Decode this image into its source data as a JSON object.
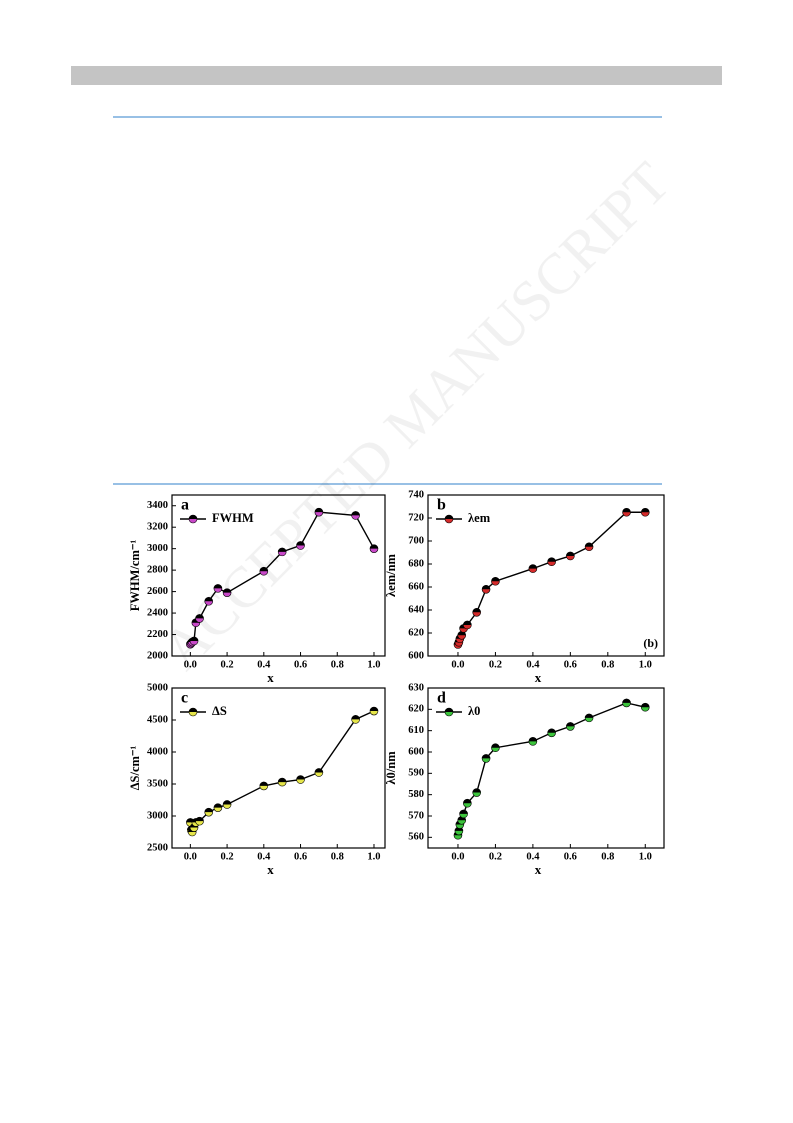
{
  "watermark": "ACCEPTED MANUSCRIPT",
  "chart_data": [
    {
      "type": "line",
      "panel_label": "a",
      "x_label": "x",
      "y_label": "FWHM/cm⁻¹",
      "x": [
        0,
        0.005,
        0.01,
        0.02,
        0.03,
        0.05,
        0.1,
        0.15,
        0.2,
        0.4,
        0.5,
        0.6,
        0.7,
        0.9,
        1.0
      ],
      "series": [
        {
          "name": "FWHM",
          "color": "#c848c8",
          "values": [
            2110,
            2120,
            2130,
            2140,
            2310,
            2350,
            2510,
            2630,
            2590,
            2790,
            2970,
            3030,
            3340,
            3310,
            3000
          ]
        }
      ],
      "xlim": [
        -0.1,
        1.06
      ],
      "ylim": [
        2000,
        3500
      ],
      "xticks": [
        {
          "value": 0,
          "label": "0.0"
        },
        0.2,
        0.4,
        0.6,
        0.8,
        {
          "value": 1,
          "label": "1.0"
        }
      ],
      "yticks": [
        2000,
        2200,
        2400,
        2600,
        2800,
        3000,
        3200,
        3400
      ]
    },
    {
      "type": "line",
      "panel_label": "b",
      "x_label": "x",
      "y_label": "λem/nm",
      "annotation": "(b)",
      "x": [
        0,
        0.005,
        0.01,
        0.02,
        0.03,
        0.05,
        0.1,
        0.15,
        0.2,
        0.4,
        0.5,
        0.6,
        0.7,
        0.9,
        1.0
      ],
      "series": [
        {
          "name": "λem",
          "color": "#d42a2a",
          "values": [
            610,
            612,
            615,
            618,
            624,
            627,
            638,
            658,
            665,
            676,
            682,
            687,
            695,
            725,
            725
          ]
        }
      ],
      "xlim": [
        -0.16,
        1.1
      ],
      "ylim": [
        600,
        740
      ],
      "xticks": [
        {
          "value": 0,
          "label": "0.0"
        },
        0.2,
        0.4,
        0.6,
        0.8,
        {
          "value": 1,
          "label": "1.0"
        }
      ],
      "yticks": [
        600,
        620,
        640,
        660,
        680,
        700,
        720,
        740
      ]
    },
    {
      "type": "line",
      "panel_label": "c",
      "x_label": "x",
      "y_label": "ΔS/cm⁻¹",
      "x": [
        0,
        0.005,
        0.01,
        0.02,
        0.03,
        0.05,
        0.1,
        0.15,
        0.2,
        0.4,
        0.5,
        0.6,
        0.7,
        0.9,
        1.0
      ],
      "series": [
        {
          "name": "ΔS",
          "color": "#e6e64a",
          "values": [
            2900,
            2780,
            2750,
            2820,
            2900,
            2920,
            3060,
            3130,
            3180,
            3470,
            3530,
            3570,
            3680,
            4510,
            4640
          ]
        }
      ],
      "xlim": [
        -0.1,
        1.06
      ],
      "ylim": [
        2500,
        5000
      ],
      "xticks": [
        {
          "value": 0,
          "label": "0.0"
        },
        0.2,
        0.4,
        0.6,
        0.8,
        {
          "value": 1,
          "label": "1.0"
        }
      ],
      "yticks": [
        2500,
        3000,
        3500,
        4000,
        4500,
        5000
      ]
    },
    {
      "type": "line",
      "panel_label": "d",
      "x_label": "x",
      "y_label": "λ0/nm",
      "x": [
        0,
        0.005,
        0.01,
        0.02,
        0.03,
        0.05,
        0.1,
        0.15,
        0.2,
        0.4,
        0.5,
        0.6,
        0.7,
        0.9,
        1.0
      ],
      "series": [
        {
          "name": "λ0",
          "color": "#3cc43c",
          "values": [
            561,
            563,
            566,
            568,
            571,
            576,
            581,
            597,
            602,
            605,
            609,
            612,
            616,
            623,
            621
          ]
        }
      ],
      "xlim": [
        -0.16,
        1.1
      ],
      "ylim": [
        555,
        630
      ],
      "xticks": [
        {
          "value": 0,
          "label": "0.0"
        },
        0.2,
        0.4,
        0.6,
        0.8,
        {
          "value": 1,
          "label": "1.0"
        }
      ],
      "yticks": [
        560,
        570,
        580,
        590,
        600,
        610,
        620,
        630
      ]
    }
  ]
}
